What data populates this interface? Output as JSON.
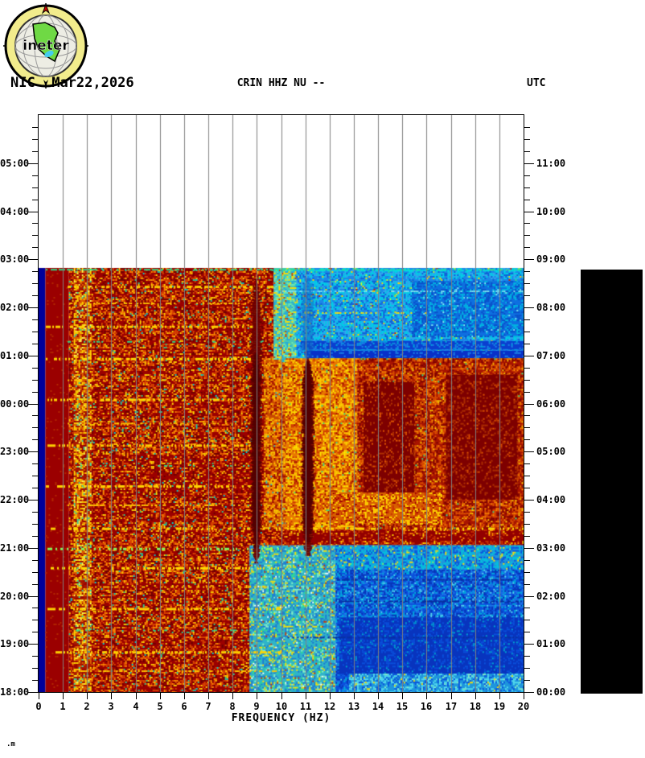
{
  "header": {
    "station": "NIC",
    "date": "Mar22,2026",
    "title": "CRIN HHZ NU --",
    "utc_label": "UTC"
  },
  "logo": {
    "text": "ineter"
  },
  "footer": {
    "glyph": ".m"
  },
  "legend": {
    "bar_color": "#000000"
  },
  "chart_data": {
    "type": "heatmap",
    "title": "CRIN HHZ NU --",
    "xlabel": "FREQUENCY (HZ)",
    "xlim": [
      0,
      20
    ],
    "x_ticks": [
      "0",
      "1",
      "2",
      "3",
      "4",
      "5",
      "6",
      "7",
      "8",
      "9",
      "10",
      "11",
      "12",
      "13",
      "14",
      "15",
      "16",
      "17",
      "18",
      "19",
      "20"
    ],
    "left_axis": {
      "name": "local-time",
      "ticks": [
        "05:00",
        "04:00",
        "03:00",
        "02:00",
        "01:00",
        "00:00",
        "23:00",
        "22:00",
        "21:00",
        "20:00",
        "19:00",
        "18:00"
      ]
    },
    "right_axis": {
      "name": "utc-time",
      "ticks": [
        "11:00",
        "10:00",
        "09:00",
        "08:00",
        "07:00",
        "06:00",
        "05:00",
        "04:00",
        "03:00",
        "02:00",
        "01:00",
        "00:00"
      ]
    },
    "time_span_hours": 12,
    "minor_tick_minutes": 15,
    "grid": true,
    "gridline_color": "#808080",
    "data_top_hour": 8.82,
    "regions": [
      {
        "f0": 0.0,
        "f1": 0.28,
        "t0": 0,
        "t1": 8.82,
        "base": "#000099",
        "speckles": []
      },
      {
        "f0": 0.28,
        "f1": 1.25,
        "t0": 0,
        "t1": 8.82,
        "base": "#9B0000",
        "speckles": [
          [
            "#B32800",
            0.05
          ]
        ]
      },
      {
        "f0": 1.25,
        "f1": 10.2,
        "t0": 0,
        "t1": 8.82,
        "base": "#9B0000",
        "speckles": [
          [
            "#D94400",
            0.2
          ],
          [
            "#FF8C00",
            0.1
          ],
          [
            "#FFD500",
            0.07
          ],
          [
            "#6E0000",
            0.14
          ],
          [
            "#2FC98C",
            0.018
          ],
          [
            "#00CCCC",
            0.012
          ]
        ]
      },
      {
        "f0": 1.45,
        "f1": 2.15,
        "t0": 0,
        "t1": 8.82,
        "base": "#A81800",
        "speckles": [
          [
            "#FFD500",
            0.26
          ],
          [
            "#FFFF55",
            0.08
          ],
          [
            "#3FD9A0",
            0.05
          ],
          [
            "#E06000",
            0.2
          ],
          [
            "#9B0000",
            0.18
          ]
        ]
      },
      {
        "f0": 9.3,
        "f1": 10.2,
        "t0": 3.4,
        "t1": 6.94,
        "base": "#C84A00",
        "speckles": [
          [
            "#FFD500",
            0.22
          ],
          [
            "#FF8C00",
            0.2
          ],
          [
            "#9B0000",
            0.18
          ],
          [
            "#30C8C8",
            0.03
          ]
        ]
      },
      {
        "f0": 9.7,
        "f1": 20,
        "t0": 6.94,
        "t1": 8.82,
        "base": "#1C86E8",
        "speckles": [
          [
            "#00D2E6",
            0.3
          ],
          [
            "#33AAEE",
            0.2
          ],
          [
            "#0F5FD6",
            0.18
          ],
          [
            "#BFFF30",
            0.02
          ],
          [
            "#FFD500",
            0.035
          ],
          [
            "#2FE08C",
            0.03
          ],
          [
            "#CC2200",
            0.008
          ]
        ]
      },
      {
        "f0": 9.7,
        "f1": 10.6,
        "t0": 6.94,
        "t1": 8.82,
        "base": "#49C8B4",
        "speckles": [
          [
            "#FFE000",
            0.15
          ],
          [
            "#6FE8B0",
            0.2
          ],
          [
            "#22AADD",
            0.2
          ],
          [
            "#CC4400",
            0.05
          ]
        ]
      },
      {
        "f0": 15.4,
        "f1": 20,
        "t0": 7.4,
        "t1": 8.55,
        "base": "#0E6FE0",
        "speckles": [
          [
            "#00BBE0",
            0.22
          ],
          [
            "#0A4FC8",
            0.25
          ],
          [
            "#7FE8F0",
            0.03
          ]
        ]
      },
      {
        "f0": 10.8,
        "f1": 20,
        "t0": 7.12,
        "t1": 7.3,
        "base": "#0A3FD0",
        "speckles": [
          [
            "#1C86E8",
            0.2
          ],
          [
            "#00AADD",
            0.1
          ]
        ]
      },
      {
        "f0": 11.0,
        "f1": 20,
        "t0": 6.94,
        "t1": 7.1,
        "base": "#0830C8",
        "speckles": [
          [
            "#1C86E8",
            0.15
          ]
        ]
      },
      {
        "f0": 10.0,
        "f1": 20,
        "t0": 6.86,
        "t1": 6.94,
        "base": "#19C8C8",
        "speckles": [
          [
            "#FFE000",
            0.2
          ],
          [
            "#7FFF60",
            0.1
          ],
          [
            "#22AADD",
            0.2
          ]
        ]
      },
      {
        "f0": 10.2,
        "f1": 13.15,
        "t0": 3.35,
        "t1": 6.94,
        "base": "#E87800",
        "speckles": [
          [
            "#FFD500",
            0.24
          ],
          [
            "#FFF200",
            0.07
          ],
          [
            "#CC3300",
            0.2
          ],
          [
            "#9B0000",
            0.09
          ],
          [
            "#2FE08C",
            0.015
          ]
        ]
      },
      {
        "f0": 13.15,
        "f1": 20,
        "t0": 3.35,
        "t1": 6.94,
        "base": "#A81400",
        "speckles": [
          [
            "#E05500",
            0.25
          ],
          [
            "#FF8C00",
            0.12
          ],
          [
            "#FFD500",
            0.05
          ],
          [
            "#7A0000",
            0.2
          ],
          [
            "#2FE08C",
            0.008
          ]
        ]
      },
      {
        "f0": 13.4,
        "f1": 15.5,
        "t0": 4.1,
        "t1": 6.45,
        "base": "#7E0000",
        "speckles": [
          [
            "#B03000",
            0.16
          ],
          [
            "#E05500",
            0.06
          ]
        ]
      },
      {
        "f0": 16.8,
        "f1": 19.75,
        "t0": 4.0,
        "t1": 6.6,
        "base": "#7E0000",
        "speckles": [
          [
            "#B03000",
            0.16
          ],
          [
            "#E05500",
            0.05
          ]
        ]
      },
      {
        "f0": 12.0,
        "f1": 16.6,
        "t0": 3.5,
        "t1": 4.15,
        "base": "#D86000",
        "speckles": [
          [
            "#FFD500",
            0.28
          ],
          [
            "#CC3300",
            0.2
          ],
          [
            "#9B0000",
            0.08
          ]
        ]
      },
      {
        "f0": 9.8,
        "f1": 20,
        "t0": 3.05,
        "t1": 3.38,
        "base": "#930000",
        "speckles": [
          [
            "#C83200",
            0.18
          ],
          [
            "#FF8C00",
            0.08
          ],
          [
            "#FFD500",
            0.05
          ]
        ]
      },
      {
        "f0": 8.7,
        "f1": 12.25,
        "t0": 0,
        "t1": 3.05,
        "base": "#2FB4C8",
        "speckles": [
          [
            "#8CF0C8",
            0.1
          ],
          [
            "#FFE000",
            0.1
          ],
          [
            "#1E78D2",
            0.22
          ],
          [
            "#2FE08C",
            0.06
          ],
          [
            "#CC3300",
            0.02
          ],
          [
            "#FFFFFF",
            0.01
          ]
        ]
      },
      {
        "f0": 12.25,
        "f1": 20,
        "t0": 0,
        "t1": 3.05,
        "base": "#0A50DC",
        "speckles": [
          [
            "#00B4DC",
            0.16
          ],
          [
            "#0832B4",
            0.22
          ],
          [
            "#55DDEE",
            0.05
          ],
          [
            "#1E78E8",
            0.2
          ]
        ]
      },
      {
        "f0": 12.4,
        "f1": 20,
        "t0": 0.35,
        "t1": 1.55,
        "base": "#0834BE",
        "speckles": [
          [
            "#0A50DC",
            0.25
          ],
          [
            "#00A0D0",
            0.06
          ]
        ]
      },
      {
        "f0": 12.25,
        "f1": 20,
        "t0": 2.55,
        "t1": 3.05,
        "base": "#1E96DC",
        "speckles": [
          [
            "#00C8DC",
            0.25
          ],
          [
            "#FFE000",
            0.04
          ],
          [
            "#0A50DC",
            0.2
          ],
          [
            "#7FFF60",
            0.02
          ]
        ]
      },
      {
        "f0": 12.8,
        "f1": 20,
        "t0": 0,
        "t1": 0.38,
        "base": "#1E96DC",
        "speckles": [
          [
            "#55DDEE",
            0.28
          ],
          [
            "#8CF0C8",
            0.08
          ],
          [
            "#0A50DC",
            0.2
          ],
          [
            "#FFE000",
            0.03
          ]
        ]
      }
    ],
    "h_streaks": [
      {
        "f0": 1.2,
        "f1": 9.7,
        "t": 8.45,
        "color": "#FFD500",
        "density": 0.5,
        "thick": 3
      },
      {
        "f0": 1.2,
        "f1": 8.6,
        "t": 8.1,
        "color": "#FFC800",
        "density": 0.4,
        "thick": 2
      },
      {
        "f0": 0.3,
        "f1": 8.8,
        "t": 7.62,
        "color": "#FFD500",
        "density": 0.45,
        "thick": 3
      },
      {
        "f0": 1.2,
        "f1": 10.0,
        "t": 7.3,
        "color": "#2FE08C",
        "density": 0.25,
        "thick": 2
      },
      {
        "f0": 0.3,
        "f1": 9.0,
        "t": 6.95,
        "color": "#FFE000",
        "density": 0.5,
        "thick": 3
      },
      {
        "f0": 1.2,
        "f1": 8.8,
        "t": 6.5,
        "color": "#FFC800",
        "density": 0.35,
        "thick": 2
      },
      {
        "f0": 0.3,
        "f1": 9.3,
        "t": 6.1,
        "color": "#FFD500",
        "density": 0.4,
        "thick": 3
      },
      {
        "f0": 1.2,
        "f1": 8.8,
        "t": 5.6,
        "color": "#FFC800",
        "density": 0.35,
        "thick": 2
      },
      {
        "f0": 0.3,
        "f1": 9.3,
        "t": 5.15,
        "color": "#FFD500",
        "density": 0.45,
        "thick": 3
      },
      {
        "f0": 1.2,
        "f1": 8.8,
        "t": 4.72,
        "color": "#2FE08C",
        "density": 0.2,
        "thick": 2
      },
      {
        "f0": 0.3,
        "f1": 9.5,
        "t": 4.3,
        "color": "#FFD500",
        "density": 0.5,
        "thick": 3
      },
      {
        "f0": 1.2,
        "f1": 8.8,
        "t": 3.9,
        "color": "#FFC800",
        "density": 0.4,
        "thick": 2
      },
      {
        "f0": 0.3,
        "f1": 20,
        "t": 3.42,
        "color": "#FFD500",
        "density": 0.4,
        "thick": 3
      },
      {
        "f0": 0.3,
        "f1": 10.0,
        "t": 3.0,
        "color": "#7FFF60",
        "density": 0.3,
        "thick": 3
      },
      {
        "f0": 0.3,
        "f1": 10.0,
        "t": 2.6,
        "color": "#FFE000",
        "density": 0.45,
        "thick": 3
      },
      {
        "f0": 1.2,
        "f1": 10.0,
        "t": 2.2,
        "color": "#FFC800",
        "density": 0.35,
        "thick": 2
      },
      {
        "f0": 0.3,
        "f1": 10.0,
        "t": 1.75,
        "color": "#FFD500",
        "density": 0.45,
        "thick": 3
      },
      {
        "f0": 1.2,
        "f1": 10.0,
        "t": 1.3,
        "color": "#2FE08C",
        "density": 0.2,
        "thick": 2
      },
      {
        "f0": 0.3,
        "f1": 10.0,
        "t": 0.85,
        "color": "#FFD500",
        "density": 0.5,
        "thick": 3
      },
      {
        "f0": 1.2,
        "f1": 10.0,
        "t": 0.45,
        "color": "#FFC800",
        "density": 0.4,
        "thick": 2
      },
      {
        "f0": 12.3,
        "f1": 20,
        "t": 2.35,
        "color": "#0830A0",
        "density": 0.7,
        "thick": 2
      },
      {
        "f0": 12.3,
        "f1": 20,
        "t": 1.9,
        "color": "#0830A0",
        "density": 0.6,
        "thick": 2
      },
      {
        "f0": 10.0,
        "f1": 20,
        "t": 1.15,
        "color": "#0830A0",
        "density": 0.5,
        "thick": 2
      },
      {
        "f0": 9.7,
        "f1": 20,
        "t": 8.35,
        "color": "#7FE8F0",
        "density": 0.5,
        "thick": 2
      },
      {
        "f0": 9.7,
        "f1": 16.0,
        "t": 7.9,
        "color": "#FFE000",
        "density": 0.25,
        "thick": 2
      },
      {
        "f0": 0.3,
        "f1": 20,
        "t": 8.8,
        "color": "#2FE08C",
        "density": 0.5,
        "thick": 2
      },
      {
        "f0": 9.7,
        "f1": 20,
        "t": 8.78,
        "color": "#00E0E0",
        "density": 0.5,
        "thick": 2
      }
    ],
    "vertical_streaks": [
      {
        "f0": 8.78,
        "f1": 9.18,
        "t0": 2.7,
        "t1": 8.6,
        "color": "#6E0000",
        "alpha": 1
      },
      {
        "f0": 8.82,
        "f1": 9.12,
        "t0": 3.0,
        "t1": 7.05,
        "color": "#520000",
        "alpha": 1
      },
      {
        "f0": 10.88,
        "f1": 11.34,
        "t0": 2.85,
        "t1": 6.95,
        "color": "#6E0000",
        "alpha": 1
      },
      {
        "f0": 10.94,
        "f1": 11.28,
        "t0": 3.1,
        "t1": 6.9,
        "color": "#520000",
        "alpha": 1
      },
      {
        "f0": 10.85,
        "f1": 11.35,
        "t0": 6.95,
        "t1": 8.6,
        "color": "#1060C0",
        "alpha": 0.5
      }
    ]
  }
}
